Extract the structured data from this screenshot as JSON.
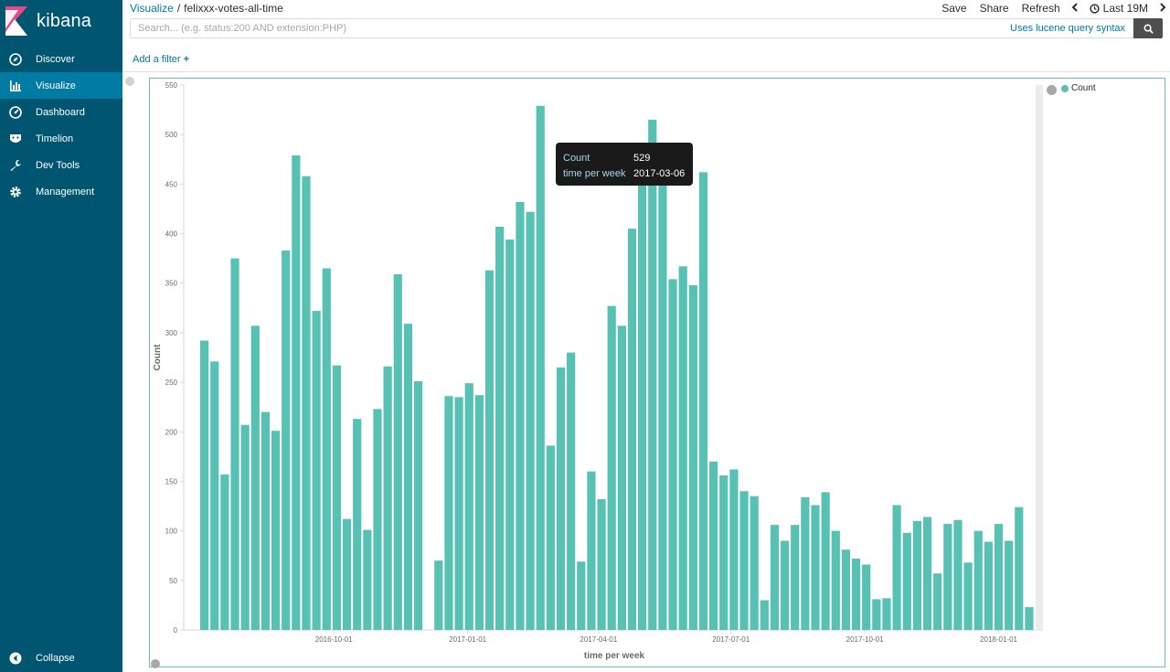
{
  "app": {
    "name": "kibana"
  },
  "nav": {
    "items": [
      {
        "label": "Discover",
        "icon": "compass-icon"
      },
      {
        "label": "Visualize",
        "icon": "bar-chart-icon"
      },
      {
        "label": "Dashboard",
        "icon": "dashboard-gauge-icon"
      },
      {
        "label": "Timelion",
        "icon": "timelion-icon"
      },
      {
        "label": "Dev Tools",
        "icon": "wrench-icon"
      },
      {
        "label": "Management",
        "icon": "gear-icon"
      }
    ],
    "active": "Visualize",
    "collapse_label": "Collapse"
  },
  "breadcrumb": {
    "parent": "Visualize",
    "current": "felixxx-votes-all-time"
  },
  "toolbar": {
    "save": "Save",
    "share": "Share",
    "refresh": "Refresh",
    "time_range": "Last 19M"
  },
  "search": {
    "placeholder": "Search... (e.g. status:200 AND extension:PHP)",
    "value": "",
    "syntax_link": "Uses lucene query syntax"
  },
  "filters": {
    "add_label": "Add a filter"
  },
  "colors": {
    "sidebar": "#005571",
    "sidebar_active": "#007ba4",
    "link": "#0079a5",
    "bar": "#57c1b3"
  },
  "tooltip": {
    "key1": "Count",
    "val1": "529",
    "key2": "time per week",
    "val2": "2017-03-06"
  },
  "legend": {
    "label": "Count"
  },
  "chart_data": {
    "type": "bar",
    "xlabel": "time per week",
    "ylabel": "Count",
    "ylim": [
      0,
      550
    ],
    "yticks": [
      0,
      50,
      100,
      150,
      200,
      250,
      300,
      350,
      400,
      450,
      500,
      550
    ],
    "xtick_labels": [
      "2016-10-01",
      "2017-01-01",
      "2017-04-01",
      "2017-07-01",
      "2017-10-01",
      "2018-01-01"
    ],
    "series": [
      {
        "name": "Count",
        "values": [
          292,
          271,
          157,
          375,
          207,
          307,
          220,
          201,
          383,
          479,
          458,
          322,
          365,
          267,
          112,
          213,
          101,
          223,
          266,
          359,
          309,
          251,
          0,
          70,
          236,
          235,
          249,
          237,
          363,
          407,
          394,
          432,
          422,
          529,
          186,
          265,
          280,
          69,
          160,
          132,
          327,
          307,
          405,
          473,
          515,
          473,
          354,
          367,
          348,
          462,
          170,
          156,
          162,
          140,
          135,
          30,
          106,
          90,
          106,
          134,
          126,
          139,
          100,
          81,
          72,
          66,
          31,
          32,
          126,
          98,
          110,
          114,
          57,
          107,
          111,
          68,
          100,
          89,
          107,
          90,
          124,
          23
        ]
      }
    ]
  }
}
